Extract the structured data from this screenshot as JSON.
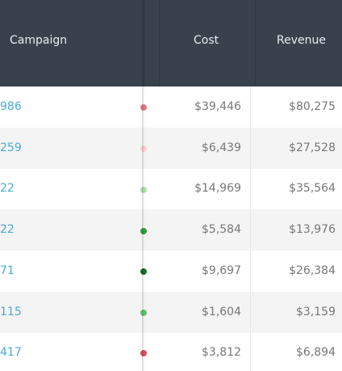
{
  "header": {
    "campaign": "Campaign",
    "cost": "Cost",
    "revenue": "Revenue"
  },
  "rows": [
    {
      "campaign": "986",
      "cost": "$39,446",
      "revenue": "$80,275"
    },
    {
      "campaign": "259",
      "cost": "$6,439",
      "revenue": "$27,528"
    },
    {
      "campaign": "22",
      "cost": "$14,969",
      "revenue": "$35,564"
    },
    {
      "campaign": "22",
      "cost": "$5,584",
      "revenue": "$13,976"
    },
    {
      "campaign": "71",
      "cost": "$9,697",
      "revenue": "$26,384"
    },
    {
      "campaign": "115",
      "cost": "$1,604",
      "revenue": "$3,159"
    },
    {
      "campaign": "417",
      "cost": "$3,812",
      "revenue": "$6,894"
    }
  ]
}
